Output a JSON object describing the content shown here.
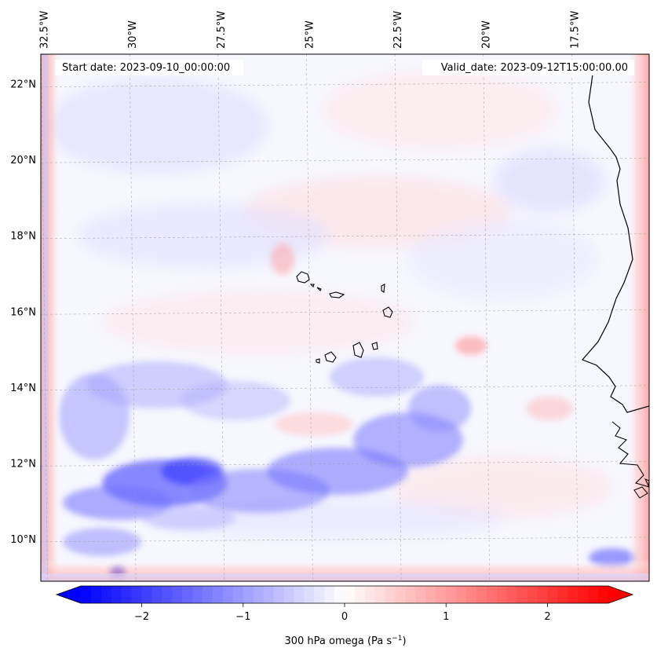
{
  "map": {
    "start_label": "Start date: 2023-09-10_00:00:00",
    "valid_label": "Valid_date: 2023-09-12T15:00:00.00",
    "lon_ticks": [
      {
        "value": -32.5,
        "label": "32.5°W"
      },
      {
        "value": -30.0,
        "label": "30°W"
      },
      {
        "value": -27.5,
        "label": "27.5°W"
      },
      {
        "value": -25.0,
        "label": "25°W"
      },
      {
        "value": -22.5,
        "label": "22.5°W"
      },
      {
        "value": -20.0,
        "label": "20°W"
      },
      {
        "value": -17.5,
        "label": "17.5°W"
      }
    ],
    "lat_ticks": [
      {
        "value": 22,
        "label": "22°N"
      },
      {
        "value": 20,
        "label": "20°N"
      },
      {
        "value": 18,
        "label": "18°N"
      },
      {
        "value": 16,
        "label": "16°N"
      },
      {
        "value": 14,
        "label": "14°N"
      },
      {
        "value": 12,
        "label": "12°N"
      },
      {
        "value": 10,
        "label": "10°N"
      }
    ],
    "extent": {
      "lon_min": -32.6,
      "lon_max": -15.4,
      "lat_min": 8.9,
      "lat_max": 22.8
    },
    "colors": {
      "negative": "#0000ff",
      "neutral": "#ffffff",
      "positive": "#ff0000",
      "coast": "#000000"
    }
  },
  "colorbar": {
    "label_main": "300 hPa omega (Pa s",
    "label_sup": "−1",
    "label_close": ")",
    "range": [
      -2.6,
      2.6
    ],
    "ticks": [
      {
        "value": -2,
        "label": "−2"
      },
      {
        "value": -1,
        "label": "−1"
      },
      {
        "value": 0,
        "label": "0"
      },
      {
        "value": 1,
        "label": "1"
      },
      {
        "value": 2,
        "label": "2"
      }
    ]
  }
}
